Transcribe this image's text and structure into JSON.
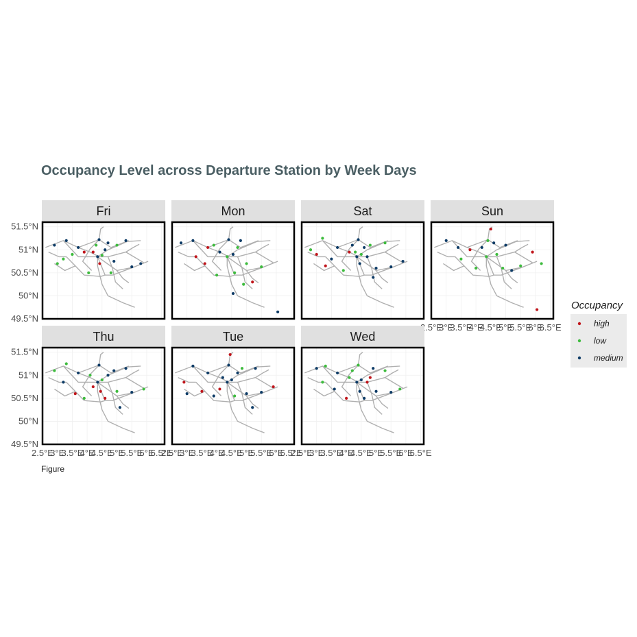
{
  "chart_data": {
    "type": "scatter",
    "title": "Occupancy Level across Departure Station by Week Days",
    "caption": "Figure",
    "facets": [
      "Fri",
      "Mon",
      "Sat",
      "Sun",
      "Thu",
      "Tue",
      "Wed"
    ],
    "x_ticks": [
      "2.5°E",
      "3°E",
      "3.5°E",
      "4°E",
      "4.5°E",
      "5°E",
      "5.5°E",
      "6°E",
      "6.5°E"
    ],
    "x_tick_values": [
      2.5,
      3,
      3.5,
      4,
      4.5,
      5,
      5.5,
      6,
      6.5
    ],
    "y_ticks": [
      "51.5°N",
      "51°N",
      "50.5°N",
      "50°N",
      "49.5°N"
    ],
    "y_tick_values": [
      51.5,
      51,
      50.5,
      50,
      49.5
    ],
    "xlim": [
      2.5,
      6.6
    ],
    "ylim": [
      49.5,
      51.6
    ],
    "legend": {
      "title": "Occupancy",
      "position": "right",
      "levels": [
        {
          "label": "high",
          "color": "#c0151b"
        },
        {
          "label": "low",
          "color": "#3dbb3d"
        },
        {
          "label": "medium",
          "color": "#0d3b66"
        }
      ]
    },
    "rail_color": "#b0b0b0",
    "rail_lines": [
      [
        [
          2.6,
          51.05
        ],
        [
          3.2,
          51.2
        ],
        [
          3.7,
          51.05
        ],
        [
          4.4,
          51.22
        ],
        [
          4.8,
          51.05
        ],
        [
          5.4,
          51.2
        ]
      ],
      [
        [
          3.2,
          51.2
        ],
        [
          3.7,
          50.85
        ],
        [
          4.35,
          50.85
        ],
        [
          5.0,
          50.55
        ],
        [
          5.55,
          50.62
        ],
        [
          6.05,
          50.75
        ]
      ],
      [
        [
          3.7,
          51.05
        ],
        [
          4.1,
          50.95
        ],
        [
          4.4,
          50.85
        ],
        [
          4.7,
          50.85
        ],
        [
          5.3,
          50.95
        ],
        [
          5.9,
          50.72
        ]
      ],
      [
        [
          4.4,
          51.22
        ],
        [
          4.45,
          51.45
        ],
        [
          4.55,
          51.5
        ]
      ],
      [
        [
          4.35,
          50.85
        ],
        [
          4.35,
          50.65
        ],
        [
          4.5,
          50.25
        ],
        [
          4.7,
          50.0
        ],
        [
          5.2,
          49.85
        ],
        [
          5.6,
          49.75
        ]
      ],
      [
        [
          4.35,
          50.85
        ],
        [
          4.6,
          50.45
        ],
        [
          4.85,
          50.45
        ],
        [
          5.55,
          50.62
        ]
      ],
      [
        [
          3.3,
          50.85
        ],
        [
          3.6,
          50.65
        ],
        [
          3.9,
          50.45
        ],
        [
          4.45,
          50.42
        ],
        [
          4.6,
          50.45
        ]
      ],
      [
        [
          3.6,
          50.65
        ],
        [
          3.25,
          50.55
        ],
        [
          2.9,
          50.7
        ]
      ],
      [
        [
          4.35,
          50.85
        ],
        [
          4.7,
          51.0
        ],
        [
          5.35,
          51.18
        ],
        [
          5.8,
          51.2
        ]
      ],
      [
        [
          4.7,
          50.85
        ],
        [
          4.85,
          50.6
        ],
        [
          4.95,
          50.3
        ],
        [
          5.2,
          50.15
        ]
      ],
      [
        [
          2.7,
          50.95
        ],
        [
          3.05,
          50.85
        ],
        [
          3.3,
          50.85
        ]
      ],
      [
        [
          4.4,
          51.22
        ],
        [
          4.1,
          51.02
        ],
        [
          3.85,
          50.75
        ],
        [
          4.15,
          50.55
        ]
      ],
      [
        [
          5.3,
          50.95
        ],
        [
          5.55,
          51.05
        ],
        [
          5.75,
          51.12
        ]
      ],
      [
        [
          5.0,
          50.55
        ],
        [
          5.2,
          50.38
        ],
        [
          5.4,
          50.28
        ]
      ]
    ],
    "panels": [
      {
        "facet": "Fri",
        "points": [
          {
            "lon": 3.3,
            "lat": 51.2,
            "occ": "medium"
          },
          {
            "lon": 3.7,
            "lat": 51.05,
            "occ": "medium"
          },
          {
            "lon": 4.4,
            "lat": 51.22,
            "occ": "medium"
          },
          {
            "lon": 4.35,
            "lat": 50.85,
            "occ": "medium"
          },
          {
            "lon": 4.5,
            "lat": 50.88,
            "occ": "low"
          },
          {
            "lon": 4.2,
            "lat": 50.95,
            "occ": "high"
          },
          {
            "lon": 3.9,
            "lat": 50.95,
            "occ": "high"
          },
          {
            "lon": 5.0,
            "lat": 51.1,
            "occ": "low"
          },
          {
            "lon": 5.5,
            "lat": 50.63,
            "occ": "medium"
          },
          {
            "lon": 3.2,
            "lat": 50.8,
            "occ": "low"
          },
          {
            "lon": 4.7,
            "lat": 51.15,
            "occ": "medium"
          },
          {
            "lon": 4.05,
            "lat": 50.5,
            "occ": "low"
          },
          {
            "lon": 2.9,
            "lat": 51.1,
            "occ": "medium"
          },
          {
            "lon": 5.3,
            "lat": 51.2,
            "occ": "medium"
          },
          {
            "lon": 4.8,
            "lat": 50.5,
            "occ": "low"
          },
          {
            "lon": 4.6,
            "lat": 51.0,
            "occ": "medium"
          },
          {
            "lon": 4.42,
            "lat": 50.7,
            "occ": "high"
          },
          {
            "lon": 3.5,
            "lat": 50.9,
            "occ": "low"
          },
          {
            "lon": 4.9,
            "lat": 50.75,
            "occ": "medium"
          },
          {
            "lon": 5.8,
            "lat": 50.7,
            "occ": "medium"
          },
          {
            "lon": 4.3,
            "lat": 51.1,
            "occ": "low"
          },
          {
            "lon": 3.0,
            "lat": 50.7,
            "occ": "low"
          }
        ]
      },
      {
        "facet": "Mon",
        "points": [
          {
            "lon": 2.8,
            "lat": 51.15,
            "occ": "medium"
          },
          {
            "lon": 3.2,
            "lat": 51.2,
            "occ": "medium"
          },
          {
            "lon": 3.7,
            "lat": 51.05,
            "occ": "high"
          },
          {
            "lon": 4.35,
            "lat": 50.85,
            "occ": "low"
          },
          {
            "lon": 4.4,
            "lat": 51.22,
            "occ": "medium"
          },
          {
            "lon": 4.7,
            "lat": 51.05,
            "occ": "low"
          },
          {
            "lon": 3.6,
            "lat": 50.7,
            "occ": "high"
          },
          {
            "lon": 4.6,
            "lat": 50.5,
            "occ": "low"
          },
          {
            "lon": 5.2,
            "lat": 50.3,
            "occ": "high"
          },
          {
            "lon": 5.5,
            "lat": 50.63,
            "occ": "low"
          },
          {
            "lon": 6.05,
            "lat": 49.65,
            "occ": "medium"
          },
          {
            "lon": 4.9,
            "lat": 50.25,
            "occ": "low"
          },
          {
            "lon": 4.0,
            "lat": 50.45,
            "occ": "low"
          },
          {
            "lon": 3.3,
            "lat": 50.85,
            "occ": "high"
          },
          {
            "lon": 4.55,
            "lat": 50.9,
            "occ": "medium"
          },
          {
            "lon": 4.1,
            "lat": 50.95,
            "occ": "medium"
          },
          {
            "lon": 4.8,
            "lat": 51.2,
            "occ": "medium"
          },
          {
            "lon": 4.55,
            "lat": 50.05,
            "occ": "medium"
          },
          {
            "lon": 3.9,
            "lat": 51.1,
            "occ": "low"
          },
          {
            "lon": 5.0,
            "lat": 50.7,
            "occ": "low"
          }
        ]
      },
      {
        "facet": "Sat",
        "points": [
          {
            "lon": 3.2,
            "lat": 51.25,
            "occ": "low"
          },
          {
            "lon": 3.7,
            "lat": 51.05,
            "occ": "medium"
          },
          {
            "lon": 4.4,
            "lat": 51.22,
            "occ": "medium"
          },
          {
            "lon": 4.35,
            "lat": 50.85,
            "occ": "medium"
          },
          {
            "lon": 4.5,
            "lat": 50.9,
            "occ": "low"
          },
          {
            "lon": 4.7,
            "lat": 50.85,
            "occ": "medium"
          },
          {
            "lon": 3.3,
            "lat": 50.65,
            "occ": "high"
          },
          {
            "lon": 3.9,
            "lat": 50.55,
            "occ": "low"
          },
          {
            "lon": 5.0,
            "lat": 50.6,
            "occ": "medium"
          },
          {
            "lon": 5.5,
            "lat": 50.63,
            "occ": "medium"
          },
          {
            "lon": 4.1,
            "lat": 50.95,
            "occ": "high"
          },
          {
            "lon": 3.0,
            "lat": 50.9,
            "occ": "high"
          },
          {
            "lon": 4.2,
            "lat": 51.1,
            "occ": "medium"
          },
          {
            "lon": 4.6,
            "lat": 51.05,
            "occ": "medium"
          },
          {
            "lon": 5.3,
            "lat": 51.15,
            "occ": "low"
          },
          {
            "lon": 4.45,
            "lat": 50.7,
            "occ": "medium"
          },
          {
            "lon": 3.5,
            "lat": 50.8,
            "occ": "medium"
          },
          {
            "lon": 4.8,
            "lat": 51.1,
            "occ": "low"
          },
          {
            "lon": 5.9,
            "lat": 50.75,
            "occ": "medium"
          },
          {
            "lon": 2.8,
            "lat": 51.0,
            "occ": "low"
          },
          {
            "lon": 4.9,
            "lat": 50.4,
            "occ": "medium"
          },
          {
            "lon": 4.3,
            "lat": 50.95,
            "occ": "low"
          }
        ]
      },
      {
        "facet": "Sun",
        "points": [
          {
            "lon": 3.0,
            "lat": 51.2,
            "occ": "medium"
          },
          {
            "lon": 3.4,
            "lat": 51.05,
            "occ": "medium"
          },
          {
            "lon": 3.8,
            "lat": 51.0,
            "occ": "high"
          },
          {
            "lon": 4.5,
            "lat": 51.45,
            "occ": "high"
          },
          {
            "lon": 4.4,
            "lat": 51.2,
            "occ": "low"
          },
          {
            "lon": 4.35,
            "lat": 50.85,
            "occ": "low"
          },
          {
            "lon": 4.7,
            "lat": 50.9,
            "occ": "low"
          },
          {
            "lon": 5.0,
            "lat": 51.1,
            "occ": "medium"
          },
          {
            "lon": 5.5,
            "lat": 50.65,
            "occ": "low"
          },
          {
            "lon": 6.05,
            "lat": 49.7,
            "occ": "high"
          },
          {
            "lon": 5.9,
            "lat": 50.95,
            "occ": "high"
          },
          {
            "lon": 6.2,
            "lat": 50.7,
            "occ": "low"
          },
          {
            "lon": 4.0,
            "lat": 50.6,
            "occ": "low"
          },
          {
            "lon": 4.2,
            "lat": 51.05,
            "occ": "medium"
          },
          {
            "lon": 4.9,
            "lat": 50.6,
            "occ": "low"
          },
          {
            "lon": 3.5,
            "lat": 50.8,
            "occ": "low"
          },
          {
            "lon": 4.6,
            "lat": 51.15,
            "occ": "medium"
          },
          {
            "lon": 5.2,
            "lat": 50.55,
            "occ": "medium"
          }
        ]
      },
      {
        "facet": "Thu",
        "points": [
          {
            "lon": 2.9,
            "lat": 51.1,
            "occ": "low"
          },
          {
            "lon": 3.3,
            "lat": 51.25,
            "occ": "low"
          },
          {
            "lon": 3.7,
            "lat": 51.05,
            "occ": "medium"
          },
          {
            "lon": 4.4,
            "lat": 51.22,
            "occ": "medium"
          },
          {
            "lon": 4.35,
            "lat": 50.85,
            "occ": "medium"
          },
          {
            "lon": 4.5,
            "lat": 50.9,
            "occ": "low"
          },
          {
            "lon": 4.2,
            "lat": 50.75,
            "occ": "high"
          },
          {
            "lon": 3.6,
            "lat": 50.6,
            "occ": "high"
          },
          {
            "lon": 3.9,
            "lat": 50.5,
            "occ": "low"
          },
          {
            "lon": 4.6,
            "lat": 50.5,
            "occ": "high"
          },
          {
            "lon": 5.0,
            "lat": 50.65,
            "occ": "low"
          },
          {
            "lon": 5.5,
            "lat": 50.63,
            "occ": "medium"
          },
          {
            "lon": 4.9,
            "lat": 51.1,
            "occ": "medium"
          },
          {
            "lon": 5.3,
            "lat": 51.15,
            "occ": "medium"
          },
          {
            "lon": 4.7,
            "lat": 51.0,
            "occ": "medium"
          },
          {
            "lon": 5.1,
            "lat": 50.3,
            "occ": "medium"
          },
          {
            "lon": 3.2,
            "lat": 50.85,
            "occ": "medium"
          },
          {
            "lon": 4.1,
            "lat": 51.0,
            "occ": "low"
          },
          {
            "lon": 5.9,
            "lat": 50.7,
            "occ": "low"
          },
          {
            "lon": 4.45,
            "lat": 50.65,
            "occ": "high"
          }
        ]
      },
      {
        "facet": "Tue",
        "points": [
          {
            "lon": 3.2,
            "lat": 51.2,
            "occ": "medium"
          },
          {
            "lon": 3.7,
            "lat": 51.05,
            "occ": "medium"
          },
          {
            "lon": 4.4,
            "lat": 51.22,
            "occ": "medium"
          },
          {
            "lon": 4.45,
            "lat": 51.45,
            "occ": "high"
          },
          {
            "lon": 4.35,
            "lat": 50.85,
            "occ": "medium"
          },
          {
            "lon": 4.5,
            "lat": 50.9,
            "occ": "medium"
          },
          {
            "lon": 2.9,
            "lat": 50.85,
            "occ": "high"
          },
          {
            "lon": 3.5,
            "lat": 50.65,
            "occ": "high"
          },
          {
            "lon": 4.6,
            "lat": 50.55,
            "occ": "low"
          },
          {
            "lon": 5.0,
            "lat": 50.6,
            "occ": "medium"
          },
          {
            "lon": 5.5,
            "lat": 50.63,
            "occ": "medium"
          },
          {
            "lon": 5.9,
            "lat": 50.75,
            "occ": "high"
          },
          {
            "lon": 5.2,
            "lat": 50.3,
            "occ": "medium"
          },
          {
            "lon": 4.2,
            "lat": 50.95,
            "occ": "medium"
          },
          {
            "lon": 4.7,
            "lat": 51.05,
            "occ": "medium"
          },
          {
            "lon": 3.9,
            "lat": 50.55,
            "occ": "medium"
          },
          {
            "lon": 4.85,
            "lat": 51.15,
            "occ": "low"
          },
          {
            "lon": 5.3,
            "lat": 51.15,
            "occ": "medium"
          },
          {
            "lon": 4.1,
            "lat": 50.7,
            "occ": "high"
          },
          {
            "lon": 3.0,
            "lat": 50.6,
            "occ": "medium"
          }
        ]
      },
      {
        "facet": "Wed",
        "points": [
          {
            "lon": 3.0,
            "lat": 51.15,
            "occ": "medium"
          },
          {
            "lon": 3.3,
            "lat": 51.2,
            "occ": "low"
          },
          {
            "lon": 3.7,
            "lat": 51.05,
            "occ": "medium"
          },
          {
            "lon": 4.4,
            "lat": 51.22,
            "occ": "low"
          },
          {
            "lon": 4.35,
            "lat": 50.85,
            "occ": "medium"
          },
          {
            "lon": 4.5,
            "lat": 50.9,
            "occ": "medium"
          },
          {
            "lon": 4.7,
            "lat": 50.85,
            "occ": "high"
          },
          {
            "lon": 4.1,
            "lat": 50.95,
            "occ": "low"
          },
          {
            "lon": 3.6,
            "lat": 50.7,
            "occ": "medium"
          },
          {
            "lon": 4.0,
            "lat": 50.5,
            "occ": "high"
          },
          {
            "lon": 4.6,
            "lat": 50.5,
            "occ": "medium"
          },
          {
            "lon": 5.0,
            "lat": 50.65,
            "occ": "medium"
          },
          {
            "lon": 5.5,
            "lat": 50.63,
            "occ": "medium"
          },
          {
            "lon": 5.3,
            "lat": 51.1,
            "occ": "low"
          },
          {
            "lon": 4.9,
            "lat": 51.15,
            "occ": "medium"
          },
          {
            "lon": 3.2,
            "lat": 50.85,
            "occ": "low"
          },
          {
            "lon": 4.2,
            "lat": 51.1,
            "occ": "low"
          },
          {
            "lon": 4.8,
            "lat": 50.95,
            "occ": "high"
          },
          {
            "lon": 5.8,
            "lat": 50.7,
            "occ": "low"
          },
          {
            "lon": 4.45,
            "lat": 50.65,
            "occ": "medium"
          }
        ]
      }
    ]
  }
}
